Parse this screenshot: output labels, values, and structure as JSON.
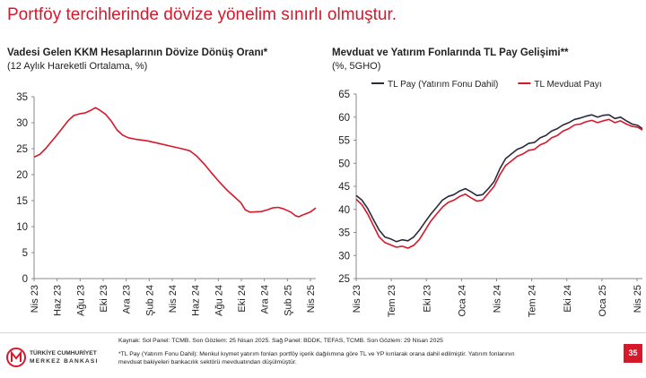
{
  "page": {
    "title": "Portföy tercihlerinde dövize yönelim sınırlı olmuştur.",
    "page_number": "35"
  },
  "footer": {
    "source": "Kaynak: Sol Panel: TCMB. Son Gözlem: 25 Nisan 2025. Sağ Panel: BDDK, TEFAS, TCMB. Son Gözlem: 29 Nisan 2025",
    "note_line1": "*TL Pay (Yatırım Fonu Dahil): Menkul kıymet yatırım fonları portföy içerik dağılımına göre TL ve YP kırılarak orana dahil edilmiştir. Yatırım fonlarının",
    "note_line2": "mevduat bakiyeleri bankacılık sektörü mevduatından düşülmüştür."
  },
  "logo": {
    "line1": "TÜRKİYE CUMHURİYET",
    "line2": "MERKEZ BANKASI"
  },
  "colors": {
    "accent": "#d7182a",
    "line_dark": "#2b2b3a",
    "axis": "#888888"
  },
  "chart_data": [
    {
      "type": "line",
      "title": "Vadesi Gelen KKM Hesaplarının Dövize Dönüş Oranı*",
      "subtitle": "(12 Aylık Hareketli Ortalama, %)",
      "xlabel": "",
      "ylabel": "",
      "ylim": [
        0,
        35
      ],
      "yticks": [
        0,
        5,
        10,
        15,
        20,
        25,
        30,
        35
      ],
      "x_ticks": [
        "Nis 23",
        "Haz 23",
        "Ağu 23",
        "Eki 23",
        "Ara 23",
        "Şub 24",
        "Nis 24",
        "Haz 24",
        "Ağu 24",
        "Eki 24",
        "Ara 24",
        "Şub 25",
        "Nis 25"
      ],
      "x_range": [
        0,
        24.8
      ],
      "grid": false,
      "series": [
        {
          "color": "#d7182a",
          "points": [
            [
              0,
              23.4
            ],
            [
              0.5,
              23.9
            ],
            [
              1,
              25.0
            ],
            [
              1.5,
              26.3
            ],
            [
              2,
              27.6
            ],
            [
              2.5,
              29.0
            ],
            [
              3,
              30.4
            ],
            [
              3.5,
              31.4
            ],
            [
              4,
              31.7
            ],
            [
              4.5,
              31.9
            ],
            [
              5,
              32.4
            ],
            [
              5.4,
              32.9
            ],
            [
              5.8,
              32.4
            ],
            [
              6.3,
              31.6
            ],
            [
              6.8,
              30.3
            ],
            [
              7.3,
              28.6
            ],
            [
              7.8,
              27.6
            ],
            [
              8.3,
              27.1
            ],
            [
              9,
              26.8
            ],
            [
              10,
              26.5
            ],
            [
              11,
              26.0
            ],
            [
              12,
              25.5
            ],
            [
              13,
              25.0
            ],
            [
              13.7,
              24.6
            ],
            [
              14.3,
              23.6
            ],
            [
              15,
              22.0
            ],
            [
              15.6,
              20.4
            ],
            [
              16.3,
              18.6
            ],
            [
              17,
              17.0
            ],
            [
              17.7,
              15.6
            ],
            [
              18.2,
              14.6
            ],
            [
              18.6,
              13.2
            ],
            [
              19,
              12.8
            ],
            [
              20,
              12.9
            ],
            [
              20.5,
              13.2
            ],
            [
              21,
              13.6
            ],
            [
              21.5,
              13.7
            ],
            [
              22,
              13.4
            ],
            [
              22.6,
              12.8
            ],
            [
              23,
              12.1
            ],
            [
              23.3,
              11.9
            ],
            [
              23.7,
              12.3
            ],
            [
              24.3,
              12.8
            ],
            [
              24.8,
              13.6
            ]
          ]
        }
      ]
    },
    {
      "type": "line",
      "title": "Mevduat ve Yatırım Fonlarında TL Pay Gelişimi**",
      "subtitle": "(%, 5GHO)",
      "xlabel": "",
      "ylabel": "",
      "ylim": [
        25,
        65
      ],
      "yticks": [
        25,
        30,
        35,
        40,
        45,
        50,
        55,
        60,
        65
      ],
      "x_ticks": [
        "Nis 23",
        "Tem 23",
        "Eki 23",
        "Oca 24",
        "Nis 24",
        "Tem 24",
        "Eki 24",
        "Oca 25",
        "Nis 25"
      ],
      "x_range": [
        0,
        24.9
      ],
      "grid": false,
      "legend": "top",
      "series": [
        {
          "name": "TL Pay (Yatırım Fonu Dahil)",
          "color": "#2b2b3a",
          "points": [
            [
              0,
              43.0
            ],
            [
              0.5,
              42.0
            ],
            [
              1,
              40.2
            ],
            [
              1.5,
              37.8
            ],
            [
              2,
              35.5
            ],
            [
              2.5,
              34.0
            ],
            [
              3,
              33.6
            ],
            [
              3.5,
              33.0
            ],
            [
              4,
              33.4
            ],
            [
              4.5,
              33.2
            ],
            [
              5,
              34.0
            ],
            [
              5.5,
              35.5
            ],
            [
              6,
              37.3
            ],
            [
              6.5,
              39.0
            ],
            [
              7,
              40.5
            ],
            [
              7.5,
              42.0
            ],
            [
              8,
              42.8
            ],
            [
              8.5,
              43.2
            ],
            [
              9,
              44.0
            ],
            [
              9.5,
              44.5
            ],
            [
              10,
              43.8
            ],
            [
              10.5,
              43.0
            ],
            [
              11,
              43.2
            ],
            [
              11.5,
              44.5
            ],
            [
              12,
              46.0
            ],
            [
              12.5,
              48.8
            ],
            [
              13,
              51.0
            ],
            [
              13.5,
              52.0
            ],
            [
              14,
              53.0
            ],
            [
              14.5,
              53.5
            ],
            [
              15,
              54.3
            ],
            [
              15.5,
              54.5
            ],
            [
              16,
              55.5
            ],
            [
              16.5,
              56.0
            ],
            [
              17,
              57.0
            ],
            [
              17.5,
              57.5
            ],
            [
              18,
              58.3
            ],
            [
              18.5,
              58.8
            ],
            [
              19,
              59.5
            ],
            [
              19.5,
              59.8
            ],
            [
              20,
              60.2
            ],
            [
              20.5,
              60.5
            ],
            [
              21,
              60.0
            ],
            [
              21.5,
              60.4
            ],
            [
              22,
              60.5
            ],
            [
              22.5,
              59.7
            ],
            [
              23,
              60.0
            ],
            [
              23.5,
              59.2
            ],
            [
              24,
              58.5
            ],
            [
              24.5,
              58.2
            ],
            [
              24.9,
              57.5
            ]
          ]
        },
        {
          "name": "TL Mevduat Payı",
          "color": "#d7182a",
          "points": [
            [
              0,
              42.2
            ],
            [
              0.5,
              41.0
            ],
            [
              1,
              39.0
            ],
            [
              1.5,
              36.5
            ],
            [
              2,
              34.0
            ],
            [
              2.5,
              32.8
            ],
            [
              3,
              32.3
            ],
            [
              3.5,
              31.8
            ],
            [
              4,
              32.0
            ],
            [
              4.5,
              31.6
            ],
            [
              5,
              32.2
            ],
            [
              5.5,
              33.5
            ],
            [
              6,
              35.5
            ],
            [
              6.5,
              37.5
            ],
            [
              7,
              39.0
            ],
            [
              7.5,
              40.5
            ],
            [
              8,
              41.5
            ],
            [
              8.5,
              42.0
            ],
            [
              9,
              42.8
            ],
            [
              9.5,
              43.3
            ],
            [
              10,
              42.5
            ],
            [
              10.5,
              41.8
            ],
            [
              11,
              42.0
            ],
            [
              11.5,
              43.5
            ],
            [
              12,
              45.0
            ],
            [
              12.5,
              47.5
            ],
            [
              13,
              49.5
            ],
            [
              13.5,
              50.5
            ],
            [
              14,
              51.5
            ],
            [
              14.5,
              52.0
            ],
            [
              15,
              52.8
            ],
            [
              15.5,
              53.0
            ],
            [
              16,
              54.0
            ],
            [
              16.5,
              54.5
            ],
            [
              17,
              55.5
            ],
            [
              17.5,
              56.0
            ],
            [
              18,
              57.0
            ],
            [
              18.5,
              57.5
            ],
            [
              19,
              58.3
            ],
            [
              19.5,
              58.5
            ],
            [
              20,
              59.0
            ],
            [
              20.5,
              59.3
            ],
            [
              21,
              58.8
            ],
            [
              21.5,
              59.2
            ],
            [
              22,
              59.5
            ],
            [
              22.5,
              58.8
            ],
            [
              23,
              59.2
            ],
            [
              23.5,
              58.5
            ],
            [
              24,
              58.0
            ],
            [
              24.5,
              57.8
            ],
            [
              24.9,
              57.2
            ]
          ]
        }
      ]
    }
  ]
}
